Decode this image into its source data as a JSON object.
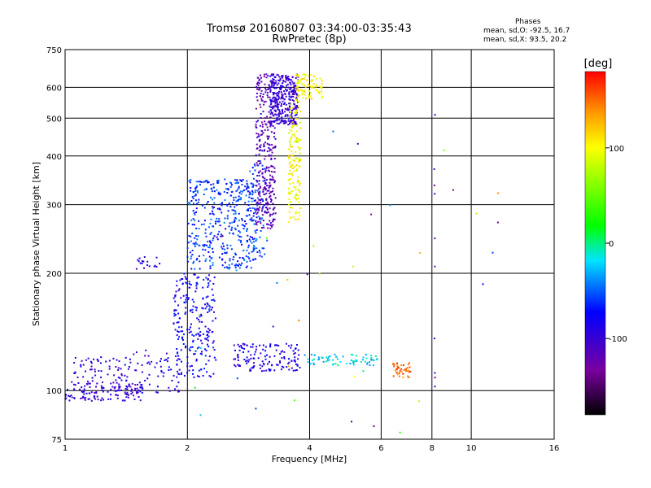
{
  "header": {
    "title_line1": "Tromsø 20160807 03:34:00-03:35:43",
    "title_line2": "RwPretec (8p)",
    "stats_heading": "Phases",
    "stats_o": "mean, sd,O: -92.5, 16.7",
    "stats_x": "mean, sd,X:  93.5, 20.2"
  },
  "colorbar": {
    "unit_label": "[deg]",
    "tick_labels": [
      "100",
      "0",
      "-100"
    ],
    "tick_values": [
      100,
      0,
      -100
    ],
    "range": [
      -180,
      180
    ]
  },
  "chart_data": {
    "type": "scatter",
    "title": "Tromsø 20160807 03:34:00-03:35:43",
    "subtitle": "RwPretec (8p)",
    "xlabel": "Frequency [MHz]",
    "ylabel": "Stationary phase Virtual Height [km]",
    "x_scale": "log",
    "y_scale": "log",
    "xlim": [
      1,
      16
    ],
    "ylim": [
      75,
      750
    ],
    "x_ticks": [
      1,
      2,
      4,
      6,
      8,
      10,
      16
    ],
    "x_tick_labels": [
      "1",
      "2",
      "4",
      "6",
      "8",
      "10",
      "16"
    ],
    "y_ticks": [
      75,
      100,
      200,
      300,
      400,
      500,
      600,
      750
    ],
    "y_tick_labels": [
      "75",
      "100",
      "200",
      "300",
      "400",
      "500",
      "600",
      "750"
    ],
    "grid": true,
    "color_by": "phase [deg]",
    "clusters": [
      {
        "x_range": [
          1.0,
          1.55
        ],
        "y_range": [
          94,
          106
        ],
        "phase": -100,
        "n": 140
      },
      {
        "x_range": [
          1.05,
          1.45
        ],
        "y_range": [
          106,
          122
        ],
        "phase": -95,
        "n": 60
      },
      {
        "x_range": [
          1.45,
          1.95
        ],
        "y_range": [
          98,
          128
        ],
        "phase": -90,
        "n": 60
      },
      {
        "x_range": [
          1.5,
          1.75
        ],
        "y_range": [
          205,
          222
        ],
        "phase": -95,
        "n": 18
      },
      {
        "x_range": [
          1.85,
          2.35
        ],
        "y_range": [
          108,
          200
        ],
        "phase": -80,
        "n": 230
      },
      {
        "x_range": [
          2.0,
          2.95
        ],
        "y_range": [
          205,
          350
        ],
        "phase": -60,
        "n": 420
      },
      {
        "x_range": [
          2.8,
          3.15
        ],
        "y_range": [
          220,
          390
        ],
        "phase": -55,
        "n": 70
      },
      {
        "x_range": [
          2.95,
          3.3
        ],
        "y_range": [
          260,
          650
        ],
        "phase": -115,
        "n": 330
      },
      {
        "x_range": [
          3.2,
          3.75
        ],
        "y_range": [
          480,
          650
        ],
        "phase": -100,
        "n": 320
      },
      {
        "x_range": [
          3.55,
          3.8
        ],
        "y_range": [
          270,
          560
        ],
        "phase": 100,
        "n": 150
      },
      {
        "x_range": [
          3.7,
          4.3
        ],
        "y_range": [
          560,
          650
        ],
        "phase": 105,
        "n": 90
      },
      {
        "x_range": [
          2.6,
          3.8
        ],
        "y_range": [
          112,
          132
        ],
        "phase": -90,
        "n": 140
      },
      {
        "x_range": [
          3.85,
          5.9
        ],
        "y_range": [
          116,
          124
        ],
        "phase": -20,
        "n": 70
      },
      {
        "x_range": [
          6.4,
          7.1
        ],
        "y_range": [
          108,
          118
        ],
        "phase": 150,
        "n": 40
      },
      {
        "x_range": [
          8.1,
          8.15
        ],
        "y_range": [
          90,
          520
        ],
        "phase": -110,
        "n": 10
      },
      {
        "x_range": [
          1.8,
          12.0
        ],
        "y_range": [
          78,
          560
        ],
        "phase": 0,
        "n": 45
      }
    ]
  }
}
